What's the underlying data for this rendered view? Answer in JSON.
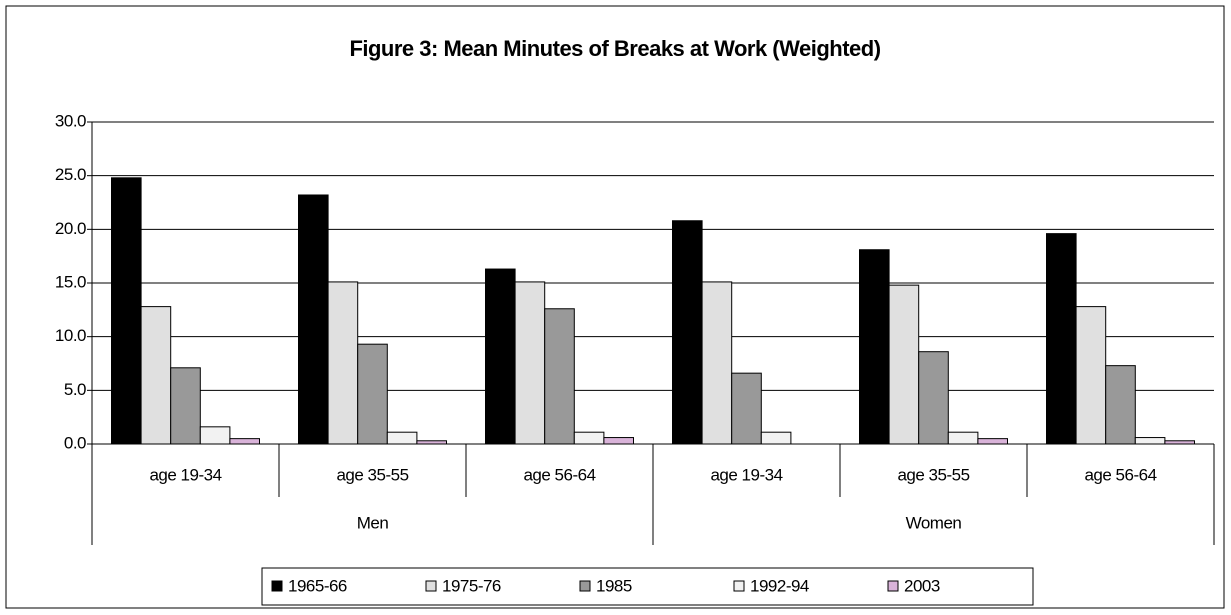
{
  "chart_data": {
    "type": "bar",
    "title": "Figure 3: Mean Minutes of Breaks at Work (Weighted)",
    "category_groups": [
      {
        "name": "Men",
        "categories": [
          "age 19-34",
          "age 35-55",
          "age 56-64"
        ]
      },
      {
        "name": "Women",
        "categories": [
          "age 19-34",
          "age 35-55",
          "age 56-64"
        ]
      }
    ],
    "series": [
      {
        "name": "1965-66",
        "color": "#000000",
        "values": [
          24.8,
          23.2,
          16.3,
          20.8,
          18.1,
          19.6
        ]
      },
      {
        "name": "1975-76",
        "color": "#e0e0e0",
        "values": [
          12.8,
          15.1,
          15.1,
          15.1,
          14.8,
          12.8
        ]
      },
      {
        "name": "1985",
        "color": "#999999",
        "values": [
          7.1,
          9.3,
          12.6,
          6.6,
          8.6,
          7.3
        ]
      },
      {
        "name": "1992-94",
        "color": "#f2f2f2",
        "values": [
          1.6,
          1.1,
          1.1,
          1.1,
          1.1,
          0.6
        ]
      },
      {
        "name": "2003",
        "color": "#d9b3d9",
        "values": [
          0.5,
          0.3,
          0.6,
          0,
          0.5,
          0.3
        ]
      }
    ],
    "ylim": [
      0,
      30
    ],
    "yticks": [
      {
        "value": 0,
        "label": "0.0"
      },
      {
        "value": 5,
        "label": "5.0"
      },
      {
        "value": 10,
        "label": "10.0"
      },
      {
        "value": 15,
        "label": "15.0"
      },
      {
        "value": 20,
        "label": "20.0"
      },
      {
        "value": 25,
        "label": "25.0"
      },
      {
        "value": 30,
        "label": "30.0"
      }
    ],
    "grid": true,
    "legend": "bottom"
  }
}
